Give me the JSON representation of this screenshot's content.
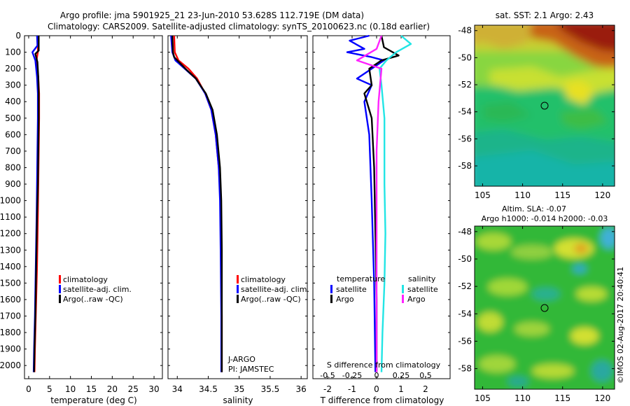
{
  "header": {
    "title_line1": "Argo profile: jma 5901925_21 23-Jun-2010 53.628S 112.719E (DM data)",
    "title_line2": "Climatology: CARS2009. Satellite-adjusted climatology: synTS_20100623.nc (0.18d earlier)"
  },
  "colors": {
    "climatology": "#ff0000",
    "satellite": "#0000ff",
    "argo": "#000000",
    "sal_satellite": "#22e5e5",
    "sal_argo": "#ff22ff"
  },
  "legend": {
    "climatology": "climatology",
    "satellite": "satellite-adj. clim.",
    "argo": "Argo(..raw -QC)"
  },
  "legend_diff": {
    "temperature_title": "temperature",
    "salinity_title": "salinity",
    "satellite": "satellite",
    "argo": "Argo"
  },
  "annotations": {
    "program": "J-ARGO",
    "pi": "PI: JAMSTEC",
    "sst": "sat. SST: 2.1  Argo: 2.43",
    "sla": "Altim. SLA: -0.07",
    "argo_h": "Argo h1000: -0.014 h2000: -0.03",
    "credit": "©IMOS 02-Aug-2017 20:40:41"
  },
  "chart_data": [
    {
      "type": "line",
      "name": "temperature",
      "xlabel": "temperature (deg C)",
      "ylabel": "",
      "xlim": [
        -1,
        32
      ],
      "ylim": [
        2080,
        0
      ],
      "xticks": [
        0,
        5,
        10,
        15,
        20,
        25,
        30
      ],
      "yticks": [
        0,
        100,
        200,
        300,
        400,
        500,
        600,
        700,
        800,
        900,
        1000,
        1100,
        1200,
        1300,
        1400,
        1500,
        1600,
        1700,
        1800,
        1900,
        2000
      ],
      "series": [
        {
          "name": "climatology",
          "color": "#ff0000",
          "points": [
            [
              2.2,
              0
            ],
            [
              2.2,
              100
            ],
            [
              1.8,
              160
            ],
            [
              2.3,
              250
            ],
            [
              2.5,
              350
            ],
            [
              2.5,
              500
            ],
            [
              2.4,
              700
            ],
            [
              2.3,
              900
            ],
            [
              2.2,
              1100
            ],
            [
              2.0,
              1400
            ],
            [
              1.7,
              1700
            ],
            [
              1.5,
              1900
            ],
            [
              1.4,
              2040
            ]
          ]
        },
        {
          "name": "satellite-adj. clim.",
          "color": "#0000ff",
          "points": [
            [
              2.0,
              0
            ],
            [
              2.1,
              60
            ],
            [
              0.9,
              100
            ],
            [
              1.6,
              150
            ],
            [
              2.0,
              250
            ],
            [
              2.2,
              350
            ],
            [
              2.2,
              500
            ],
            [
              2.1,
              700
            ],
            [
              2.0,
              900
            ],
            [
              1.9,
              1100
            ],
            [
              1.7,
              1400
            ],
            [
              1.5,
              1700
            ],
            [
              1.3,
              1900
            ],
            [
              1.2,
              2040
            ]
          ]
        },
        {
          "name": "Argo(..raw -QC)",
          "color": "#000000",
          "points": [
            [
              2.4,
              0
            ],
            [
              2.4,
              90
            ],
            [
              1.6,
              110
            ],
            [
              2.1,
              160
            ],
            [
              2.3,
              250
            ],
            [
              2.4,
              350
            ],
            [
              2.4,
              500
            ],
            [
              2.3,
              700
            ],
            [
              2.2,
              900
            ],
            [
              2.0,
              1100
            ],
            [
              1.8,
              1400
            ],
            [
              1.6,
              1700
            ],
            [
              1.4,
              1900
            ],
            [
              1.3,
              2040
            ]
          ]
        }
      ]
    },
    {
      "type": "line",
      "name": "salinity",
      "xlabel": "salinity",
      "ylabel": "",
      "xlim": [
        33.85,
        36.1
      ],
      "ylim": [
        2080,
        0
      ],
      "xticks": [
        34,
        34.5,
        35,
        35.5,
        36
      ],
      "series": [
        {
          "name": "climatology",
          "color": "#ff0000",
          "points": [
            [
              33.95,
              0
            ],
            [
              33.96,
              100
            ],
            [
              34.02,
              150
            ],
            [
              34.18,
              200
            ],
            [
              34.32,
              260
            ],
            [
              34.45,
              350
            ],
            [
              34.55,
              450
            ],
            [
              34.62,
              600
            ],
            [
              34.67,
              800
            ],
            [
              34.7,
              1000
            ],
            [
              34.71,
              1300
            ],
            [
              34.72,
              1700
            ],
            [
              34.72,
              2040
            ]
          ]
        },
        {
          "name": "satellite-adj. clim.",
          "color": "#0000ff",
          "points": [
            [
              33.9,
              0
            ],
            [
              33.92,
              100
            ],
            [
              33.97,
              150
            ],
            [
              34.12,
              200
            ],
            [
              34.3,
              260
            ],
            [
              34.45,
              350
            ],
            [
              34.55,
              450
            ],
            [
              34.62,
              600
            ],
            [
              34.67,
              800
            ],
            [
              34.69,
              1000
            ],
            [
              34.7,
              1300
            ],
            [
              34.71,
              1700
            ],
            [
              34.71,
              2040
            ]
          ]
        },
        {
          "name": "Argo(..raw -QC)",
          "color": "#000000",
          "points": [
            [
              33.92,
              0
            ],
            [
              33.93,
              100
            ],
            [
              33.95,
              130
            ],
            [
              34.13,
              200
            ],
            [
              34.3,
              260
            ],
            [
              34.46,
              350
            ],
            [
              34.57,
              450
            ],
            [
              34.64,
              600
            ],
            [
              34.69,
              800
            ],
            [
              34.71,
              1000
            ],
            [
              34.72,
              1300
            ],
            [
              34.72,
              1700
            ],
            [
              34.72,
              2040
            ]
          ]
        }
      ]
    },
    {
      "type": "line",
      "name": "differences",
      "xlabel": "T difference from climatology",
      "xlabel_top": "S difference from climatology",
      "xlim": [
        -2.6,
        3.0
      ],
      "xticks": [
        -2,
        -1,
        0,
        1,
        2
      ],
      "xlim_salinity": [
        -0.65,
        0.75
      ],
      "xticks_salinity": [
        -0.5,
        -0.25,
        0,
        0.25,
        0.5
      ],
      "tick_labels_salinity": [
        "-0.5",
        "-0.25",
        "0",
        "0.25",
        "0.5"
      ],
      "ylim": [
        2080,
        0
      ],
      "series": [
        {
          "name": "temperature satellite",
          "color": "#0000ff",
          "points": [
            [
              -0.3,
              0
            ],
            [
              -1.1,
              30
            ],
            [
              -0.5,
              80
            ],
            [
              -1.2,
              100
            ],
            [
              -0.2,
              130
            ],
            [
              0.3,
              150
            ],
            [
              -0.2,
              200
            ],
            [
              -0.8,
              260
            ],
            [
              -0.2,
              300
            ],
            [
              -0.5,
              400
            ],
            [
              -0.3,
              600
            ],
            [
              -0.2,
              1000
            ],
            [
              -0.1,
              1500
            ],
            [
              -0.05,
              2040
            ]
          ]
        },
        {
          "name": "temperature Argo",
          "color": "#000000",
          "points": [
            [
              0.2,
              0
            ],
            [
              0.3,
              70
            ],
            [
              0.9,
              120
            ],
            [
              0.2,
              150
            ],
            [
              -0.3,
              200
            ],
            [
              -0.2,
              300
            ],
            [
              -0.5,
              350
            ],
            [
              -0.2,
              500
            ],
            [
              -0.1,
              800
            ],
            [
              -0.05,
              1200
            ],
            [
              0.0,
              1600
            ],
            [
              0.0,
              2040
            ]
          ]
        },
        {
          "name": "salinity satellite",
          "color": "#22e5e5",
          "points": [
            [
              0.25,
              0
            ],
            [
              0.35,
              50
            ],
            [
              0.2,
              100
            ],
            [
              0.1,
              150
            ],
            [
              0.03,
              200
            ],
            [
              0.05,
              300
            ],
            [
              0.08,
              500
            ],
            [
              0.08,
              900
            ],
            [
              0.09,
              1200
            ],
            [
              0.08,
              1500
            ],
            [
              0.06,
              1800
            ],
            [
              0.05,
              2040
            ]
          ]
        },
        {
          "name": "salinity Argo",
          "color": "#ff22ff",
          "points": [
            [
              0.05,
              0
            ],
            [
              0.0,
              80
            ],
            [
              -0.2,
              150
            ],
            [
              0.05,
              200
            ],
            [
              0.02,
              400
            ],
            [
              0.0,
              700
            ],
            [
              0.0,
              1000
            ],
            [
              0.0,
              1500
            ],
            [
              0.0,
              2040
            ]
          ]
        }
      ]
    },
    {
      "type": "heatmap",
      "name": "sat. SST map",
      "title": "sat. SST: 2.1  Argo: 2.43",
      "xlim": [
        104,
        121.5
      ],
      "ylim": [
        -59.5,
        -47.6
      ],
      "xticks": [
        105,
        110,
        115,
        120
      ],
      "yticks": [
        -48,
        -50,
        -52,
        -54,
        -56,
        -58
      ],
      "profile_location": [
        112.72,
        -53.63
      ]
    },
    {
      "type": "heatmap",
      "name": "altimetry SLA map",
      "title": "Altim. SLA: -0.07",
      "xlim": [
        104,
        121.5
      ],
      "ylim": [
        -59.5,
        -47.6
      ],
      "xticks": [
        105,
        110,
        115,
        120
      ],
      "yticks": [
        -48,
        -50,
        -52,
        -54,
        -56,
        -58
      ],
      "profile_location": [
        112.72,
        -53.63
      ]
    }
  ]
}
